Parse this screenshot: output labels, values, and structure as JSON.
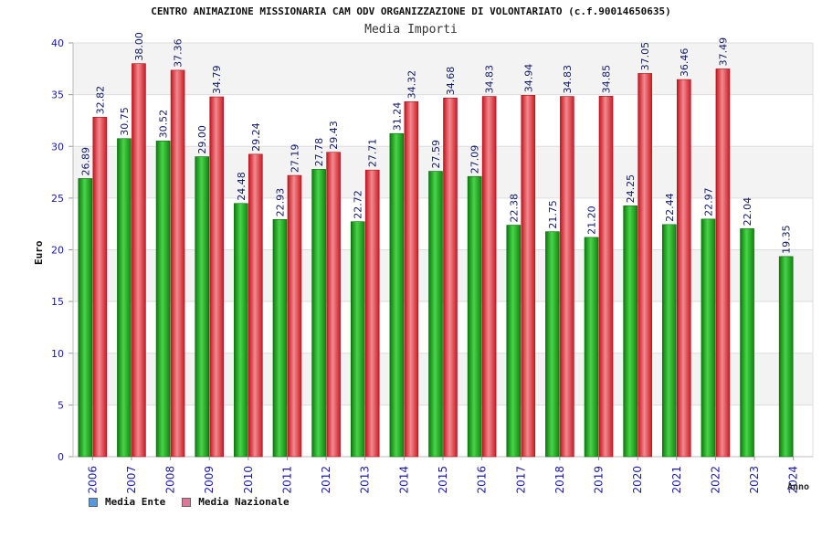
{
  "chart_data": {
    "type": "bar",
    "title": "CENTRO ANIMAZIONE MISSIONARIA CAM ODV ORGANIZZAZIONE DI VOLONTARIATO (c.f.90014650635)",
    "subtitle": "Media Importi",
    "xlabel": "Anno",
    "ylabel": "Euro",
    "ylim": [
      0,
      40
    ],
    "yticks": [
      0,
      5,
      10,
      15,
      20,
      25,
      30,
      35,
      40
    ],
    "grid": true,
    "legend_position": "bottom-left",
    "categories": [
      "2006",
      "2007",
      "2008",
      "2009",
      "2010",
      "2011",
      "2012",
      "2013",
      "2014",
      "2015",
      "2016",
      "2017",
      "2018",
      "2019",
      "2020",
      "2021",
      "2022",
      "2023",
      "2024"
    ],
    "series": [
      {
        "name": "Media Ente",
        "color": "#22aa22",
        "legend_color": "#5599dd",
        "values": [
          26.89,
          30.75,
          30.52,
          29.0,
          24.48,
          22.93,
          27.78,
          22.72,
          31.24,
          27.59,
          27.09,
          22.38,
          21.75,
          21.2,
          24.25,
          22.44,
          22.97,
          22.04,
          19.35
        ],
        "labels": [
          "26.89",
          "30.75",
          "30.52",
          "29.00",
          "24.48",
          "22.93",
          "27.78",
          "22.72",
          "31.24",
          "27.59",
          "27.09",
          "22.38",
          "21.75",
          "21.20",
          "24.25",
          "22.44",
          "22.97",
          "22.04",
          "19.35"
        ]
      },
      {
        "name": "Media Nazionale",
        "color": "#e8303a",
        "legend_color": "#dd7799",
        "values": [
          32.82,
          38.0,
          37.36,
          34.79,
          29.24,
          27.19,
          29.43,
          27.71,
          34.32,
          34.68,
          34.83,
          34.94,
          34.83,
          34.85,
          37.05,
          36.46,
          37.49,
          null,
          null
        ],
        "labels": [
          "32.82",
          "38.00",
          "37.36",
          "34.79",
          "29.24",
          "27.19",
          "29.43",
          "27.71",
          "34.32",
          "34.68",
          "34.83",
          "34.94",
          "34.83",
          "34.85",
          "37.05",
          "36.46",
          "37.49",
          "",
          ""
        ]
      }
    ]
  }
}
